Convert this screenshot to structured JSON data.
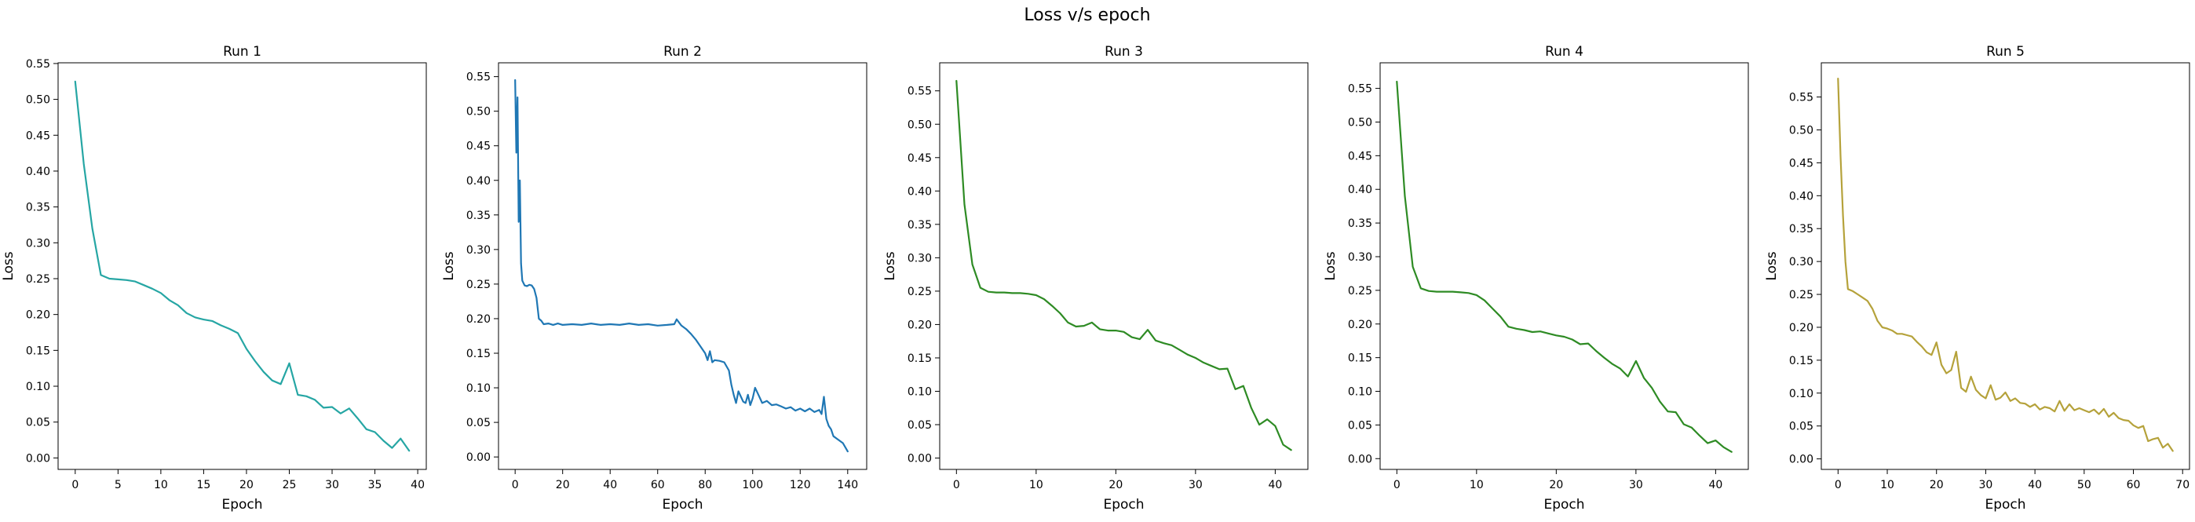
{
  "figure": {
    "suptitle": "Loss v/s epoch"
  },
  "chart_data": [
    {
      "type": "line",
      "title": "Run 1",
      "xlabel": "Epoch",
      "ylabel": "Loss",
      "xlim": [
        -2,
        41
      ],
      "ylim": [
        -0.016,
        0.551
      ],
      "xticks": [
        0,
        5,
        10,
        15,
        20,
        25,
        30,
        35,
        40
      ],
      "yticks": [
        0.0,
        0.05,
        0.1,
        0.15,
        0.2,
        0.25,
        0.3,
        0.35,
        0.4,
        0.45,
        0.5,
        0.55
      ],
      "xtick_labels": [
        "0",
        "5",
        "10",
        "15",
        "20",
        "25",
        "30",
        "35",
        "40"
      ],
      "ytick_labels": [
        "0.00",
        "0.05",
        "0.10",
        "0.15",
        "0.20",
        "0.25",
        "0.30",
        "0.35",
        "0.40",
        "0.45",
        "0.50",
        "0.55"
      ],
      "color": "#26a6a4",
      "x": [
        0,
        1,
        2,
        3,
        4,
        5,
        6,
        7,
        8,
        9,
        10,
        11,
        12,
        13,
        14,
        15,
        16,
        17,
        18,
        19,
        20,
        21,
        22,
        23,
        24,
        25,
        26,
        27,
        28,
        29,
        30,
        31,
        32,
        33,
        34,
        35,
        36,
        37,
        38,
        39
      ],
      "y": [
        0.525,
        0.41,
        0.32,
        0.255,
        0.25,
        0.249,
        0.248,
        0.246,
        0.241,
        0.236,
        0.23,
        0.22,
        0.213,
        0.202,
        0.196,
        0.193,
        0.191,
        0.185,
        0.18,
        0.174,
        0.152,
        0.135,
        0.12,
        0.108,
        0.103,
        0.132,
        0.088,
        0.086,
        0.081,
        0.07,
        0.071,
        0.062,
        0.069,
        0.055,
        0.04,
        0.036,
        0.024,
        0.014,
        0.027,
        0.01
      ]
    },
    {
      "type": "line",
      "title": "Run 2",
      "xlabel": "Epoch",
      "ylabel": "Loss",
      "xlim": [
        -7,
        148
      ],
      "ylim": [
        -0.018,
        0.57
      ],
      "xticks": [
        0,
        20,
        40,
        60,
        80,
        100,
        120,
        140
      ],
      "yticks": [
        0.0,
        0.05,
        0.1,
        0.15,
        0.2,
        0.25,
        0.3,
        0.35,
        0.4,
        0.45,
        0.5,
        0.55
      ],
      "xtick_labels": [
        "0",
        "20",
        "40",
        "60",
        "80",
        "100",
        "120",
        "140"
      ],
      "ytick_labels": [
        "0.00",
        "0.05",
        "0.10",
        "0.15",
        "0.20",
        "0.25",
        "0.30",
        "0.35",
        "0.40",
        "0.45",
        "0.50",
        "0.55"
      ],
      "color": "#1f77b4",
      "x": [
        0,
        0.5,
        1,
        1.5,
        2,
        2.5,
        3,
        4,
        5,
        6,
        7,
        8,
        9,
        10,
        11,
        12,
        14,
        16,
        18,
        20,
        24,
        28,
        32,
        36,
        40,
        44,
        48,
        52,
        56,
        60,
        64,
        67,
        68,
        70,
        72,
        74,
        76,
        78,
        80,
        81,
        82,
        83,
        84,
        86,
        88,
        90,
        91,
        92,
        93,
        94,
        96,
        97,
        98,
        99,
        100,
        101,
        102,
        104,
        106,
        108,
        110,
        112,
        114,
        116,
        118,
        120,
        122,
        124,
        126,
        128,
        129,
        130,
        131,
        132,
        133,
        134,
        136,
        138,
        140
      ],
      "y": [
        0.545,
        0.44,
        0.52,
        0.34,
        0.4,
        0.28,
        0.255,
        0.248,
        0.247,
        0.249,
        0.248,
        0.243,
        0.23,
        0.2,
        0.197,
        0.192,
        0.193,
        0.191,
        0.193,
        0.191,
        0.192,
        0.191,
        0.193,
        0.191,
        0.192,
        0.191,
        0.193,
        0.191,
        0.192,
        0.19,
        0.191,
        0.192,
        0.199,
        0.19,
        0.185,
        0.178,
        0.17,
        0.16,
        0.15,
        0.14,
        0.153,
        0.137,
        0.14,
        0.139,
        0.137,
        0.125,
        0.105,
        0.09,
        0.078,
        0.095,
        0.08,
        0.078,
        0.09,
        0.075,
        0.085,
        0.1,
        0.093,
        0.078,
        0.081,
        0.075,
        0.076,
        0.073,
        0.07,
        0.072,
        0.067,
        0.07,
        0.066,
        0.07,
        0.065,
        0.068,
        0.062,
        0.087,
        0.055,
        0.045,
        0.04,
        0.03,
        0.025,
        0.02,
        0.008
      ]
    },
    {
      "type": "line",
      "title": "Run 3",
      "xlabel": "Epoch",
      "ylabel": "Loss",
      "xlim": [
        -2.1,
        44.1
      ],
      "ylim": [
        -0.017,
        0.592
      ],
      "xticks": [
        0,
        10,
        20,
        30,
        40
      ],
      "yticks": [
        0.0,
        0.05,
        0.1,
        0.15,
        0.2,
        0.25,
        0.3,
        0.35,
        0.4,
        0.45,
        0.5,
        0.55
      ],
      "xtick_labels": [
        "0",
        "10",
        "20",
        "30",
        "40"
      ],
      "ytick_labels": [
        "0.00",
        "0.05",
        "0.10",
        "0.15",
        "0.20",
        "0.25",
        "0.30",
        "0.35",
        "0.40",
        "0.45",
        "0.50",
        "0.55"
      ],
      "color": "#2e8b24",
      "x": [
        0,
        1,
        2,
        3,
        4,
        5,
        6,
        7,
        8,
        9,
        10,
        11,
        12,
        13,
        14,
        15,
        16,
        17,
        18,
        19,
        20,
        21,
        22,
        23,
        24,
        25,
        26,
        27,
        28,
        29,
        30,
        31,
        32,
        33,
        34,
        35,
        36,
        37,
        38,
        39,
        40,
        41,
        42
      ],
      "y": [
        0.565,
        0.38,
        0.29,
        0.255,
        0.249,
        0.248,
        0.248,
        0.247,
        0.247,
        0.246,
        0.244,
        0.238,
        0.228,
        0.217,
        0.203,
        0.197,
        0.198,
        0.203,
        0.193,
        0.191,
        0.191,
        0.189,
        0.181,
        0.178,
        0.192,
        0.176,
        0.172,
        0.169,
        0.162,
        0.155,
        0.15,
        0.143,
        0.138,
        0.133,
        0.134,
        0.103,
        0.108,
        0.075,
        0.05,
        0.058,
        0.048,
        0.02,
        0.012
      ]
    },
    {
      "type": "line",
      "title": "Run 4",
      "xlabel": "Epoch",
      "ylabel": "Loss",
      "xlim": [
        -2.1,
        44.1
      ],
      "ylim": [
        -0.016,
        0.588
      ],
      "xticks": [
        0,
        10,
        20,
        30,
        40
      ],
      "yticks": [
        0.0,
        0.05,
        0.1,
        0.15,
        0.2,
        0.25,
        0.3,
        0.35,
        0.4,
        0.45,
        0.5,
        0.55
      ],
      "xtick_labels": [
        "0",
        "10",
        "20",
        "30",
        "40"
      ],
      "ytick_labels": [
        "0.00",
        "0.05",
        "0.10",
        "0.15",
        "0.20",
        "0.25",
        "0.30",
        "0.35",
        "0.40",
        "0.45",
        "0.50",
        "0.55"
      ],
      "color": "#2e8b24",
      "x": [
        0,
        1,
        2,
        3,
        4,
        5,
        6,
        7,
        8,
        9,
        10,
        11,
        12,
        13,
        14,
        15,
        16,
        17,
        18,
        19,
        20,
        21,
        22,
        23,
        24,
        25,
        26,
        27,
        28,
        29,
        30,
        31,
        32,
        33,
        34,
        35,
        36,
        37,
        38,
        39,
        40,
        41,
        42
      ],
      "y": [
        0.56,
        0.39,
        0.285,
        0.253,
        0.249,
        0.248,
        0.248,
        0.248,
        0.247,
        0.246,
        0.243,
        0.235,
        0.223,
        0.211,
        0.196,
        0.193,
        0.191,
        0.188,
        0.189,
        0.186,
        0.183,
        0.181,
        0.177,
        0.17,
        0.171,
        0.16,
        0.15,
        0.141,
        0.134,
        0.122,
        0.145,
        0.12,
        0.105,
        0.085,
        0.07,
        0.069,
        0.051,
        0.046,
        0.034,
        0.023,
        0.027,
        0.017,
        0.01
      ]
    },
    {
      "type": "line",
      "title": "Run 5",
      "xlabel": "Epoch",
      "ylabel": "Loss",
      "xlim": [
        -3.4,
        71.4
      ],
      "ylim": [
        -0.016,
        0.602
      ],
      "xticks": [
        0,
        10,
        20,
        30,
        40,
        50,
        60,
        70
      ],
      "yticks": [
        0.0,
        0.05,
        0.1,
        0.15,
        0.2,
        0.25,
        0.3,
        0.35,
        0.4,
        0.45,
        0.5,
        0.55
      ],
      "xtick_labels": [
        "0",
        "10",
        "20",
        "30",
        "40",
        "50",
        "60",
        "70"
      ],
      "ytick_labels": [
        "0.00",
        "0.05",
        "0.10",
        "0.15",
        "0.20",
        "0.25",
        "0.30",
        "0.35",
        "0.40",
        "0.45",
        "0.50",
        "0.55"
      ],
      "color": "#b5a23b",
      "x": [
        0,
        0.5,
        1,
        1.5,
        2,
        3,
        4,
        5,
        6,
        7,
        8,
        9,
        10,
        11,
        12,
        13,
        14,
        15,
        16,
        17,
        18,
        19,
        20,
        21,
        22,
        23,
        24,
        25,
        26,
        27,
        28,
        29,
        30,
        31,
        32,
        33,
        34,
        35,
        36,
        37,
        38,
        39,
        40,
        41,
        42,
        43,
        44,
        45,
        46,
        47,
        48,
        49,
        50,
        51,
        52,
        53,
        54,
        55,
        56,
        57,
        58,
        59,
        60,
        61,
        62,
        63,
        64,
        65,
        66,
        67,
        68
      ],
      "y": [
        0.578,
        0.46,
        0.37,
        0.3,
        0.258,
        0.255,
        0.25,
        0.245,
        0.24,
        0.228,
        0.21,
        0.2,
        0.198,
        0.195,
        0.19,
        0.19,
        0.188,
        0.186,
        0.178,
        0.171,
        0.162,
        0.158,
        0.177,
        0.143,
        0.13,
        0.135,
        0.163,
        0.108,
        0.102,
        0.125,
        0.105,
        0.097,
        0.092,
        0.112,
        0.09,
        0.093,
        0.101,
        0.088,
        0.092,
        0.085,
        0.084,
        0.079,
        0.083,
        0.075,
        0.079,
        0.077,
        0.072,
        0.088,
        0.073,
        0.083,
        0.074,
        0.077,
        0.074,
        0.071,
        0.075,
        0.068,
        0.076,
        0.064,
        0.07,
        0.062,
        0.059,
        0.058,
        0.051,
        0.047,
        0.05,
        0.027,
        0.03,
        0.032,
        0.017,
        0.023,
        0.012
      ]
    }
  ]
}
